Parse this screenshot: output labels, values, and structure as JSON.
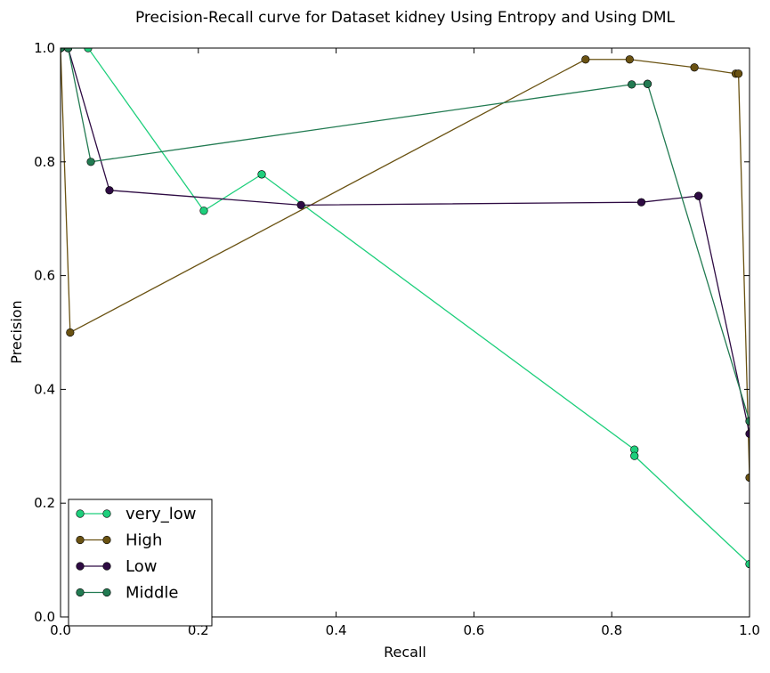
{
  "chart_data": {
    "type": "line",
    "title": "Precision-Recall curve for Dataset kidney Using Entropy and Using DML",
    "xlabel": "Recall",
    "ylabel": "Precision",
    "xlim": [
      0.0,
      1.0
    ],
    "ylim": [
      0.0,
      1.0
    ],
    "xticks": [
      "0.0",
      "0.2",
      "0.4",
      "0.6",
      "0.8",
      "1.0"
    ],
    "yticks": [
      "0.0",
      "0.2",
      "0.4",
      "0.6",
      "0.8",
      "1.0"
    ],
    "grid": false,
    "legend_position": "lower-left",
    "series": [
      {
        "name": "very_low",
        "color": "#1ecf7c",
        "x": [
          0.0,
          0.0,
          0.04,
          0.208,
          0.292,
          0.292,
          0.833,
          0.833,
          1.0
        ],
        "y": [
          1.0,
          1.0,
          1.0,
          0.714,
          0.778,
          0.778,
          0.294,
          0.283,
          0.093
        ]
      },
      {
        "name": "High",
        "color": "#6a5212",
        "x": [
          0.0,
          0.014,
          0.762,
          0.826,
          0.92,
          0.98,
          0.984,
          1.0
        ],
        "y": [
          1.0,
          0.5,
          0.98,
          0.98,
          0.966,
          0.955,
          0.955,
          0.245
        ]
      },
      {
        "name": "Low",
        "color": "#2e0b43",
        "x": [
          0.0,
          0.011,
          0.071,
          0.349,
          0.843,
          0.926,
          0.926,
          1.0
        ],
        "y": [
          1.0,
          1.0,
          0.75,
          0.724,
          0.729,
          0.74,
          0.74,
          0.322
        ]
      },
      {
        "name": "Middle",
        "color": "#227b52",
        "x": [
          0.0,
          0.011,
          0.044,
          0.829,
          0.852,
          0.852,
          1.0
        ],
        "y": [
          1.0,
          1.0,
          0.8,
          0.936,
          0.937,
          0.937,
          0.344
        ]
      }
    ]
  }
}
